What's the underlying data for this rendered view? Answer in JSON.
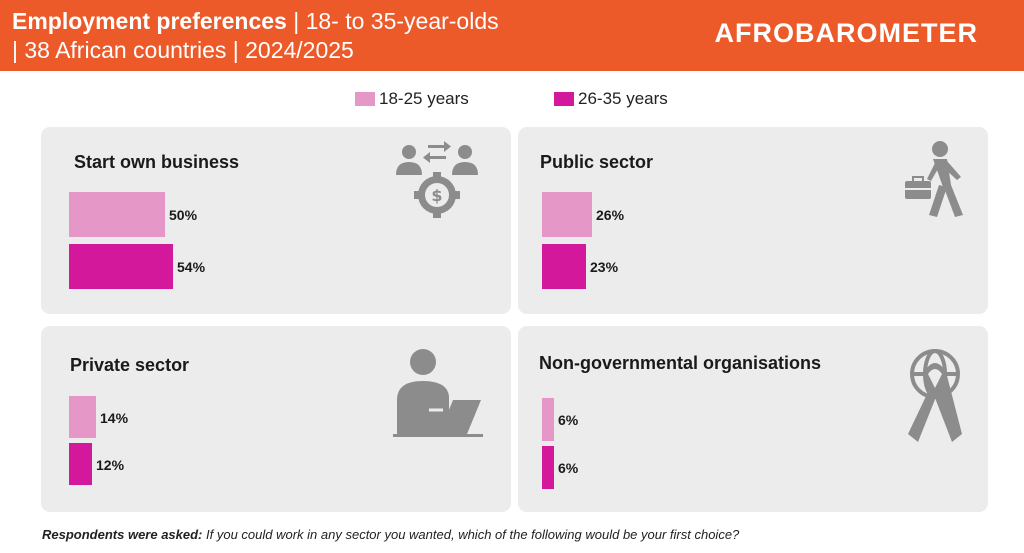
{
  "header": {
    "title_bold": "Employment preferences",
    "title_rest_line1": " | 18- to 35-year-olds",
    "title_line2": "| 38 African countries | 2024/2025",
    "logo_text": "AFROBAROMETER"
  },
  "colors": {
    "header_bg": "#ec5a2a",
    "panel_bg": "#ececec",
    "series_18_25": "#e597c8",
    "series_26_35": "#d4189b",
    "icon": "#8c8c8c"
  },
  "chart_data": {
    "type": "bar",
    "orientation": "horizontal",
    "unit": "%",
    "xlim": [
      0,
      54
    ],
    "legend_position": "top-center",
    "grid": false,
    "series": [
      {
        "name": "18-25 years",
        "color": "#e597c8"
      },
      {
        "name": "26-35 years",
        "color": "#d4189b"
      }
    ],
    "panels": [
      {
        "category": "Start own business",
        "icon": "business-exchange-gear-icon",
        "values": [
          50,
          54
        ],
        "labels": [
          "50%",
          "54%"
        ]
      },
      {
        "category": "Public sector",
        "icon": "person-walking-briefcase-icon",
        "values": [
          26,
          23
        ],
        "labels": [
          "26%",
          "23%"
        ]
      },
      {
        "category": "Private sector",
        "icon": "person-laptop-icon",
        "values": [
          14,
          12
        ],
        "labels": [
          "14%",
          "12%"
        ]
      },
      {
        "category": "Non-governmental organisations",
        "icon": "globe-ribbon-icon",
        "values": [
          6,
          6
        ],
        "labels": [
          "6%",
          "6%"
        ]
      }
    ]
  },
  "footnote": {
    "label": "Respondents were asked:",
    "question": " If you could work in any sector you wanted, which of the following would be your first choice?"
  }
}
